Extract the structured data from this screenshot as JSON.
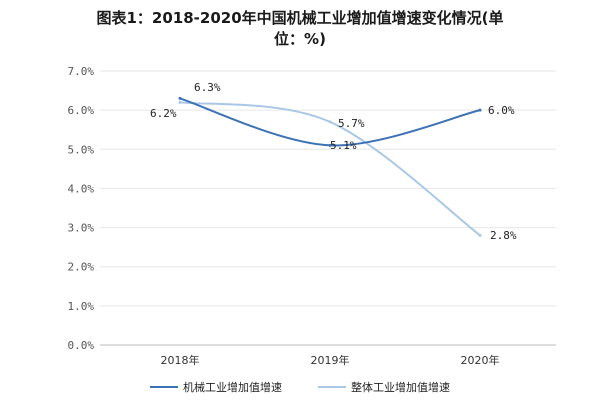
{
  "title_line1": "图表1：2018-2020年中国机械工业增加值增速变化情况(单",
  "title_line2": "位：%)",
  "chart_data": {
    "type": "line",
    "categories": [
      "2018年",
      "2019年",
      "2020年"
    ],
    "ylim": [
      0,
      7
    ],
    "yticks": [
      "0.0%",
      "1.0%",
      "2.0%",
      "3.0%",
      "4.0%",
      "5.0%",
      "6.0%",
      "7.0%"
    ],
    "grid": true,
    "legend_position": "bottom",
    "series": [
      {
        "name": "机械工业增加值增速",
        "values": [
          6.3,
          5.1,
          6.0
        ],
        "labels": [
          "6.3%",
          "5.1%",
          "6.0%"
        ],
        "color": "#3d72b4"
      },
      {
        "name": "整体工业增加值增速",
        "values": [
          6.2,
          5.7,
          2.8
        ],
        "labels": [
          "6.2%",
          "5.7%",
          "2.8%"
        ],
        "color": "#a9c7e6"
      }
    ]
  }
}
